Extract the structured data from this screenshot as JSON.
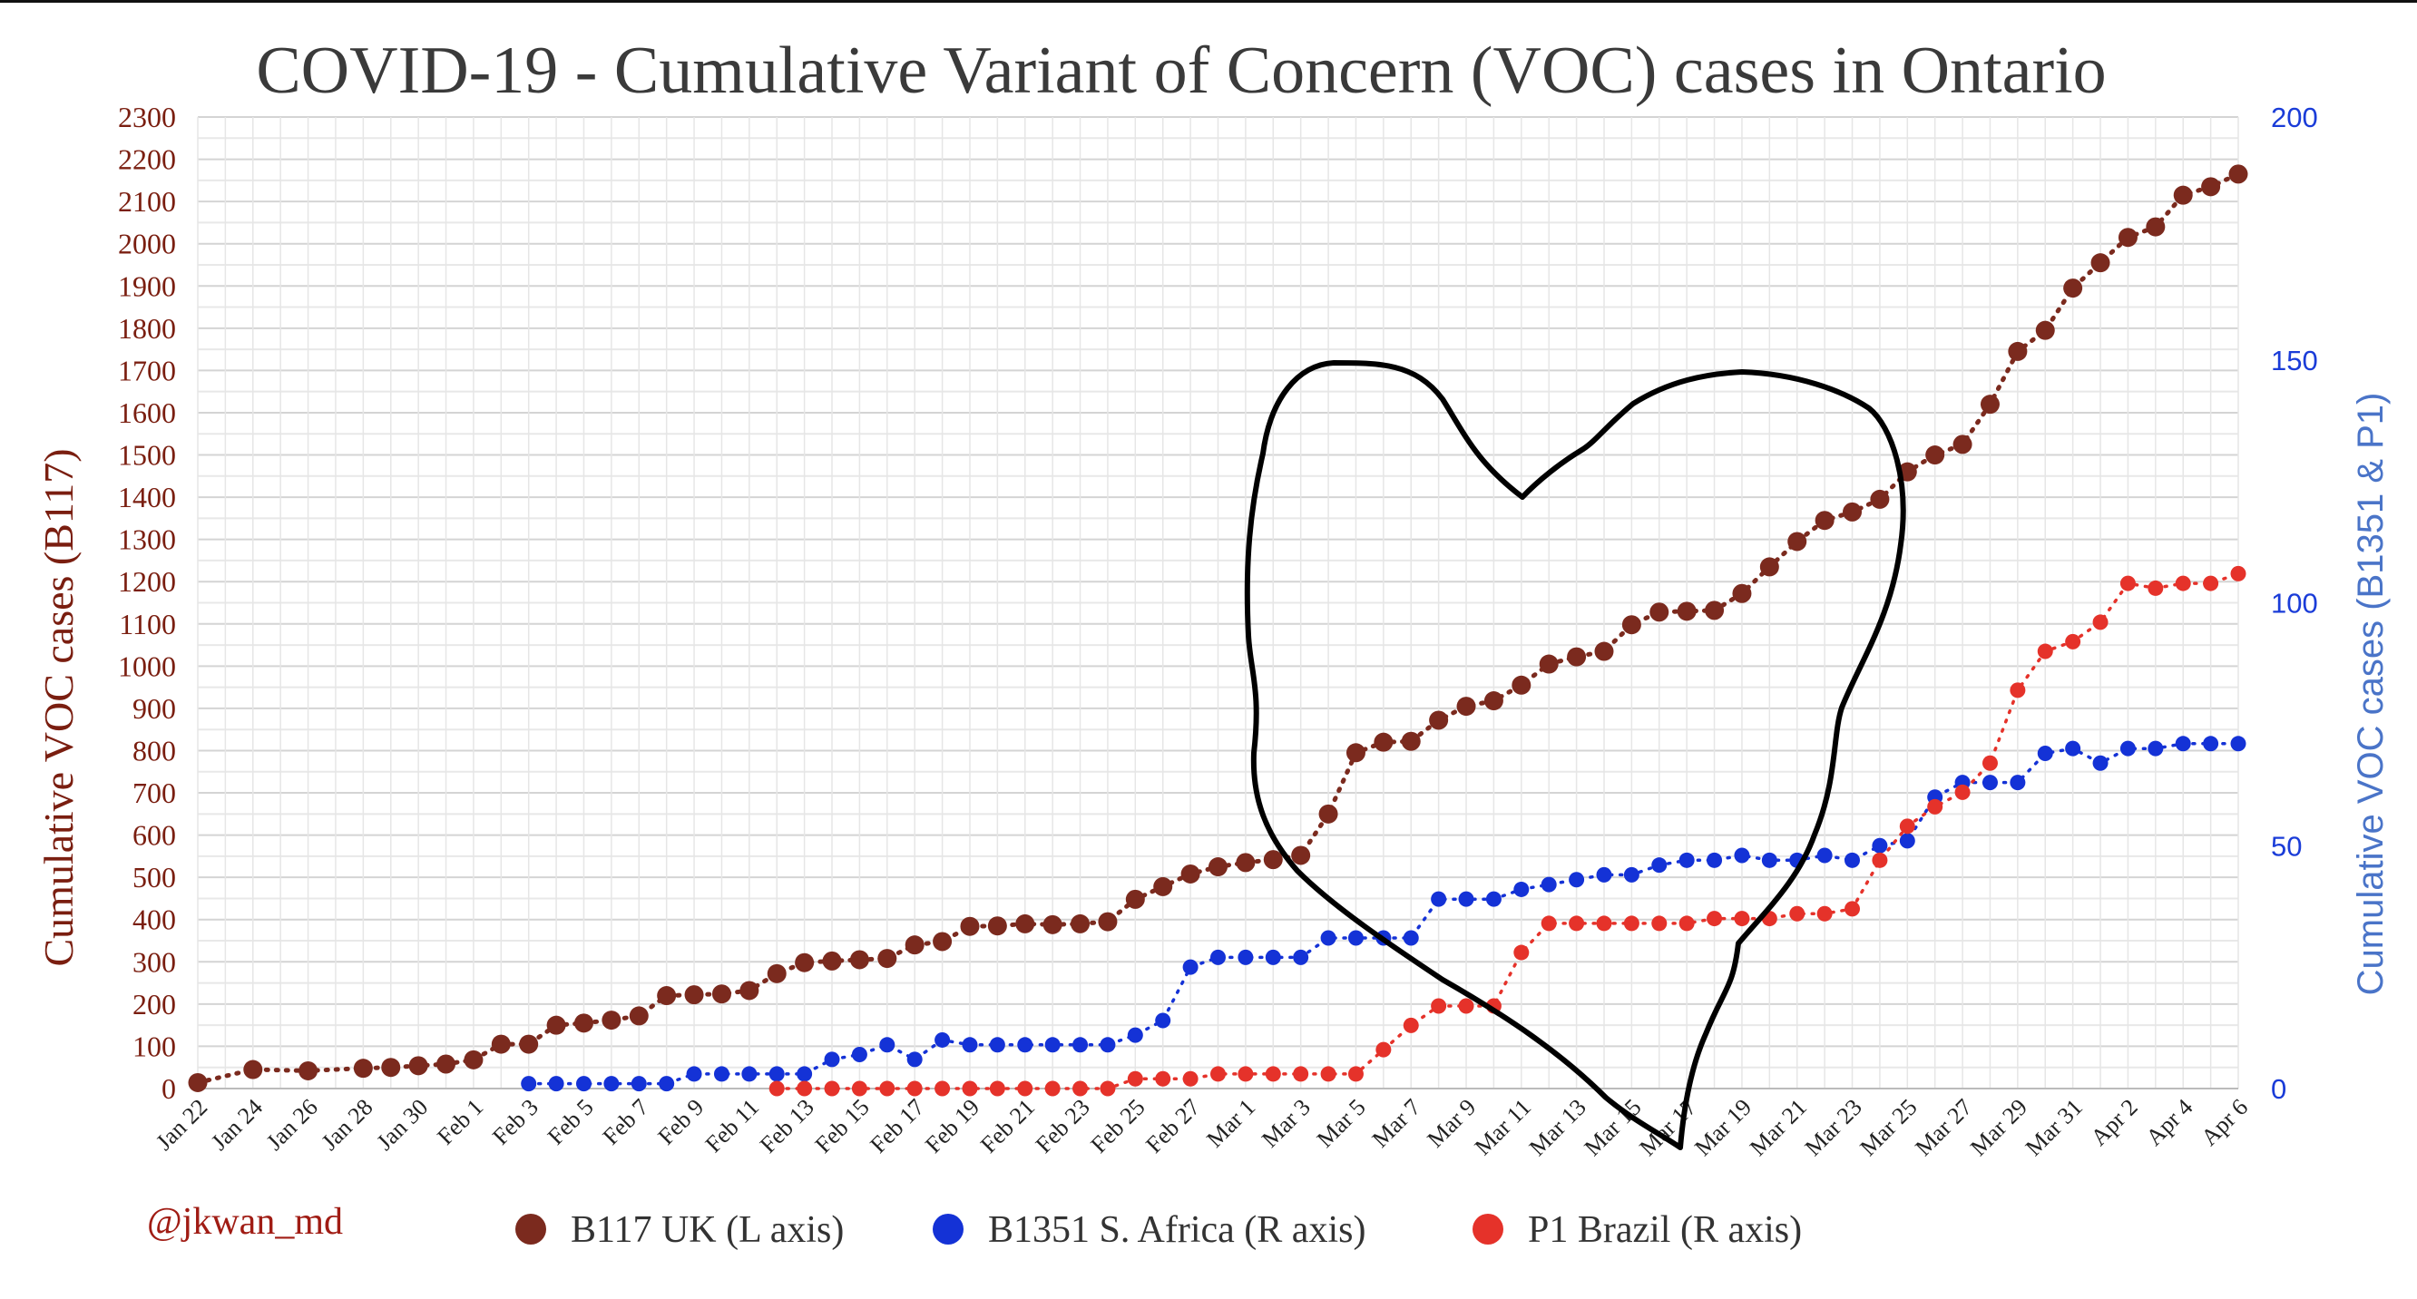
{
  "chart_data": {
    "type": "line",
    "title": "COVID-19 - Cumulative Variant of Concern (VOC) cases in Ontario",
    "ylabel_left": "Cumulative VOC cases (B117)",
    "ylabel_right": "Cumulative VOC cases (B1351 & P1)",
    "ylim_left": [
      0,
      2300
    ],
    "ylim_right": [
      0,
      200
    ],
    "yticks_left": [
      0,
      100,
      200,
      300,
      400,
      500,
      600,
      700,
      800,
      900,
      1000,
      1100,
      1200,
      1300,
      1400,
      1500,
      1600,
      1700,
      1800,
      1900,
      2000,
      2100,
      2200,
      2300
    ],
    "yticks_right": [
      0,
      50,
      100,
      150,
      200
    ],
    "xlim": [
      "2021-01-22",
      "2021-04-06"
    ],
    "xticks": [
      {
        "date": "2021-01-22",
        "label": "Jan 22"
      },
      {
        "date": "2021-01-24",
        "label": "Jan 24"
      },
      {
        "date": "2021-01-26",
        "label": "Jan 26"
      },
      {
        "date": "2021-01-28",
        "label": "Jan 28"
      },
      {
        "date": "2021-01-30",
        "label": "Jan 30"
      },
      {
        "date": "2021-02-01",
        "label": "Feb 1"
      },
      {
        "date": "2021-02-03",
        "label": "Feb 3"
      },
      {
        "date": "2021-02-05",
        "label": "Feb 5"
      },
      {
        "date": "2021-02-07",
        "label": "Feb 7"
      },
      {
        "date": "2021-02-09",
        "label": "Feb 9"
      },
      {
        "date": "2021-02-11",
        "label": "Feb 11"
      },
      {
        "date": "2021-02-13",
        "label": "Feb 13"
      },
      {
        "date": "2021-02-15",
        "label": "Feb 15"
      },
      {
        "date": "2021-02-17",
        "label": "Feb 17"
      },
      {
        "date": "2021-02-19",
        "label": "Feb 19"
      },
      {
        "date": "2021-02-21",
        "label": "Feb 21"
      },
      {
        "date": "2021-02-23",
        "label": "Feb 23"
      },
      {
        "date": "2021-02-25",
        "label": "Feb 25"
      },
      {
        "date": "2021-02-27",
        "label": "Feb 27"
      },
      {
        "date": "2021-03-01",
        "label": "Mar 1"
      },
      {
        "date": "2021-03-03",
        "label": "Mar 3"
      },
      {
        "date": "2021-03-05",
        "label": "Mar 5"
      },
      {
        "date": "2021-03-07",
        "label": "Mar 7"
      },
      {
        "date": "2021-03-09",
        "label": "Mar 9"
      },
      {
        "date": "2021-03-11",
        "label": "Mar 11"
      },
      {
        "date": "2021-03-13",
        "label": "Mar 13"
      },
      {
        "date": "2021-03-15",
        "label": "Mar 15"
      },
      {
        "date": "2021-03-17",
        "label": "Mar 17"
      },
      {
        "date": "2021-03-19",
        "label": "Mar 19"
      },
      {
        "date": "2021-03-21",
        "label": "Mar 21"
      },
      {
        "date": "2021-03-23",
        "label": "Mar 23"
      },
      {
        "date": "2021-03-25",
        "label": "Mar 25"
      },
      {
        "date": "2021-03-27",
        "label": "Mar 27"
      },
      {
        "date": "2021-03-29",
        "label": "Mar 29"
      },
      {
        "date": "2021-03-31",
        "label": "Mar 31"
      },
      {
        "date": "2021-04-02",
        "label": "Apr 2"
      },
      {
        "date": "2021-04-04",
        "label": "Apr 4"
      },
      {
        "date": "2021-04-06",
        "label": "Apr 6"
      }
    ],
    "grid": true,
    "legend_position": "bottom",
    "series": [
      {
        "name": "B117 UK (L axis)",
        "axis": "left",
        "color": "#7b2a1e",
        "points": [
          [
            "2021-01-22",
            14
          ],
          [
            "2021-01-24",
            45
          ],
          [
            "2021-01-26",
            42
          ],
          [
            "2021-01-28",
            48
          ],
          [
            "2021-01-29",
            50
          ],
          [
            "2021-01-30",
            54
          ],
          [
            "2021-01-31",
            58
          ],
          [
            "2021-02-01",
            68
          ],
          [
            "2021-02-02",
            105
          ],
          [
            "2021-02-03",
            105
          ],
          [
            "2021-02-04",
            150
          ],
          [
            "2021-02-05",
            155
          ],
          [
            "2021-02-06",
            162
          ],
          [
            "2021-02-07",
            172
          ],
          [
            "2021-02-08",
            220
          ],
          [
            "2021-02-09",
            222
          ],
          [
            "2021-02-10",
            224
          ],
          [
            "2021-02-11",
            232
          ],
          [
            "2021-02-12",
            272
          ],
          [
            "2021-02-13",
            298
          ],
          [
            "2021-02-14",
            302
          ],
          [
            "2021-02-15",
            305
          ],
          [
            "2021-02-16",
            308
          ],
          [
            "2021-02-17",
            340
          ],
          [
            "2021-02-18",
            348
          ],
          [
            "2021-02-19",
            384
          ],
          [
            "2021-02-20",
            385
          ],
          [
            "2021-02-21",
            390
          ],
          [
            "2021-02-22",
            388
          ],
          [
            "2021-02-23",
            390
          ],
          [
            "2021-02-24",
            395
          ],
          [
            "2021-02-25",
            448
          ],
          [
            "2021-02-26",
            478
          ],
          [
            "2021-02-27",
            508
          ],
          [
            "2021-02-28",
            525
          ],
          [
            "2021-03-01",
            535
          ],
          [
            "2021-03-02",
            542
          ],
          [
            "2021-03-03",
            552
          ],
          [
            "2021-03-04",
            650
          ],
          [
            "2021-03-05",
            795
          ],
          [
            "2021-03-06",
            820
          ],
          [
            "2021-03-07",
            822
          ],
          [
            "2021-03-08",
            872
          ],
          [
            "2021-03-09",
            905
          ],
          [
            "2021-03-10",
            918
          ],
          [
            "2021-03-11",
            955
          ],
          [
            "2021-03-12",
            1005
          ],
          [
            "2021-03-13",
            1022
          ],
          [
            "2021-03-14",
            1035
          ],
          [
            "2021-03-15",
            1098
          ],
          [
            "2021-03-16",
            1128
          ],
          [
            "2021-03-17",
            1130
          ],
          [
            "2021-03-18",
            1132
          ],
          [
            "2021-03-19",
            1172
          ],
          [
            "2021-03-20",
            1235
          ],
          [
            "2021-03-21",
            1295
          ],
          [
            "2021-03-22",
            1345
          ],
          [
            "2021-03-23",
            1365
          ],
          [
            "2021-03-24",
            1395
          ],
          [
            "2021-03-25",
            1460
          ],
          [
            "2021-03-26",
            1500
          ],
          [
            "2021-03-27",
            1525
          ],
          [
            "2021-03-28",
            1620
          ],
          [
            "2021-03-29",
            1745
          ],
          [
            "2021-03-30",
            1795
          ],
          [
            "2021-03-31",
            1895
          ],
          [
            "2021-04-01",
            1955
          ],
          [
            "2021-04-02",
            2015
          ],
          [
            "2021-04-03",
            2040
          ],
          [
            "2021-04-04",
            2115
          ],
          [
            "2021-04-05",
            2135
          ],
          [
            "2021-04-06",
            2165
          ]
        ]
      },
      {
        "name": "B1351 S. Africa (R axis)",
        "axis": "right",
        "color": "#1432d6",
        "points": [
          [
            "2021-02-03",
            1
          ],
          [
            "2021-02-04",
            1
          ],
          [
            "2021-02-05",
            1
          ],
          [
            "2021-02-06",
            1
          ],
          [
            "2021-02-07",
            1
          ],
          [
            "2021-02-08",
            1
          ],
          [
            "2021-02-09",
            3
          ],
          [
            "2021-02-10",
            3
          ],
          [
            "2021-02-11",
            3
          ],
          [
            "2021-02-12",
            3
          ],
          [
            "2021-02-13",
            3
          ],
          [
            "2021-02-14",
            6
          ],
          [
            "2021-02-15",
            7
          ],
          [
            "2021-02-16",
            9
          ],
          [
            "2021-02-17",
            6
          ],
          [
            "2021-02-18",
            10
          ],
          [
            "2021-02-19",
            9
          ],
          [
            "2021-02-20",
            9
          ],
          [
            "2021-02-21",
            9
          ],
          [
            "2021-02-22",
            9
          ],
          [
            "2021-02-23",
            9
          ],
          [
            "2021-02-24",
            9
          ],
          [
            "2021-02-25",
            11
          ],
          [
            "2021-02-26",
            14
          ],
          [
            "2021-02-27",
            25
          ],
          [
            "2021-02-28",
            27
          ],
          [
            "2021-03-01",
            27
          ],
          [
            "2021-03-02",
            27
          ],
          [
            "2021-03-03",
            27
          ],
          [
            "2021-03-04",
            31
          ],
          [
            "2021-03-05",
            31
          ],
          [
            "2021-03-06",
            31
          ],
          [
            "2021-03-07",
            31
          ],
          [
            "2021-03-08",
            39
          ],
          [
            "2021-03-09",
            39
          ],
          [
            "2021-03-10",
            39
          ],
          [
            "2021-03-11",
            41
          ],
          [
            "2021-03-12",
            42
          ],
          [
            "2021-03-13",
            43
          ],
          [
            "2021-03-14",
            44
          ],
          [
            "2021-03-15",
            44
          ],
          [
            "2021-03-16",
            46
          ],
          [
            "2021-03-17",
            47
          ],
          [
            "2021-03-18",
            47
          ],
          [
            "2021-03-19",
            48
          ],
          [
            "2021-03-20",
            47
          ],
          [
            "2021-03-21",
            47
          ],
          [
            "2021-03-22",
            48
          ],
          [
            "2021-03-23",
            47
          ],
          [
            "2021-03-24",
            50
          ],
          [
            "2021-03-25",
            51
          ],
          [
            "2021-03-26",
            60
          ],
          [
            "2021-03-27",
            63
          ],
          [
            "2021-03-28",
            63
          ],
          [
            "2021-03-29",
            63
          ],
          [
            "2021-03-30",
            69
          ],
          [
            "2021-03-31",
            70
          ],
          [
            "2021-04-01",
            67
          ],
          [
            "2021-04-02",
            70
          ],
          [
            "2021-04-03",
            70
          ],
          [
            "2021-04-04",
            71
          ],
          [
            "2021-04-05",
            71
          ],
          [
            "2021-04-06",
            71
          ]
        ]
      },
      {
        "name": "P1 Brazil (R axis)",
        "axis": "right",
        "color": "#e5322a",
        "points": [
          [
            "2021-02-12",
            0
          ],
          [
            "2021-02-13",
            0
          ],
          [
            "2021-02-14",
            0
          ],
          [
            "2021-02-15",
            0
          ],
          [
            "2021-02-16",
            0
          ],
          [
            "2021-02-17",
            0
          ],
          [
            "2021-02-18",
            0
          ],
          [
            "2021-02-19",
            0
          ],
          [
            "2021-02-20",
            0
          ],
          [
            "2021-02-21",
            0
          ],
          [
            "2021-02-22",
            0
          ],
          [
            "2021-02-23",
            0
          ],
          [
            "2021-02-24",
            0
          ],
          [
            "2021-02-25",
            2
          ],
          [
            "2021-02-26",
            2
          ],
          [
            "2021-02-27",
            2
          ],
          [
            "2021-02-28",
            3
          ],
          [
            "2021-03-01",
            3
          ],
          [
            "2021-03-02",
            3
          ],
          [
            "2021-03-03",
            3
          ],
          [
            "2021-03-04",
            3
          ],
          [
            "2021-03-05",
            3
          ],
          [
            "2021-03-06",
            8
          ],
          [
            "2021-03-07",
            13
          ],
          [
            "2021-03-08",
            17
          ],
          [
            "2021-03-09",
            17
          ],
          [
            "2021-03-10",
            17
          ],
          [
            "2021-03-11",
            28
          ],
          [
            "2021-03-12",
            34
          ],
          [
            "2021-03-13",
            34
          ],
          [
            "2021-03-14",
            34
          ],
          [
            "2021-03-15",
            34
          ],
          [
            "2021-03-16",
            34
          ],
          [
            "2021-03-17",
            34
          ],
          [
            "2021-03-18",
            35
          ],
          [
            "2021-03-19",
            35
          ],
          [
            "2021-03-20",
            35
          ],
          [
            "2021-03-21",
            36
          ],
          [
            "2021-03-22",
            36
          ],
          [
            "2021-03-23",
            37
          ],
          [
            "2021-03-24",
            47
          ],
          [
            "2021-03-25",
            54
          ],
          [
            "2021-03-26",
            58
          ],
          [
            "2021-03-27",
            61
          ],
          [
            "2021-03-28",
            67
          ],
          [
            "2021-03-29",
            82
          ],
          [
            "2021-03-30",
            90
          ],
          [
            "2021-03-31",
            92
          ],
          [
            "2021-04-01",
            96
          ],
          [
            "2021-04-02",
            104
          ],
          [
            "2021-04-03",
            103
          ],
          [
            "2021-04-04",
            104
          ],
          [
            "2021-04-05",
            104
          ],
          [
            "2021-04-06",
            106
          ]
        ]
      }
    ],
    "annotations": [
      "hand-drawn heart outline"
    ],
    "credit": "@jkwan_md"
  }
}
